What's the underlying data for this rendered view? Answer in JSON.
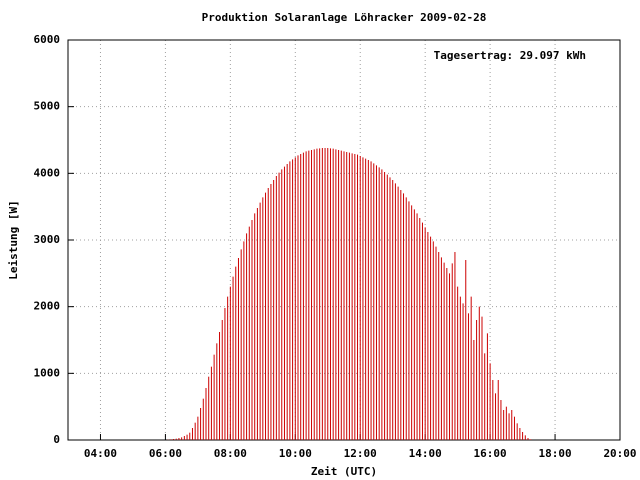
{
  "chart_data": {
    "type": "impulse",
    "title": "Produktion Solaranlage Löhracker 2009-02-28",
    "annotation": "Tagesertrag: 29.097 kWh",
    "x_label": "Zeit (UTC)",
    "y_label": "Leistung [W]",
    "color": "#cc0000",
    "grid": true,
    "xlim": [
      180,
      1200
    ],
    "ylim": [
      0,
      6000
    ],
    "xticks": [
      {
        "value": 240,
        "label": "04:00"
      },
      {
        "value": 360,
        "label": "06:00"
      },
      {
        "value": 480,
        "label": "08:00"
      },
      {
        "value": 600,
        "label": "10:00"
      },
      {
        "value": 720,
        "label": "12:00"
      },
      {
        "value": 840,
        "label": "14:00"
      },
      {
        "value": 960,
        "label": "16:00"
      },
      {
        "value": 1080,
        "label": "18:00"
      },
      {
        "value": 1200,
        "label": "20:00"
      }
    ],
    "yticks": [
      0,
      1000,
      2000,
      3000,
      4000,
      5000,
      6000
    ],
    "x": [
      360,
      365,
      370,
      375,
      380,
      385,
      390,
      395,
      400,
      405,
      410,
      415,
      420,
      425,
      430,
      435,
      440,
      445,
      450,
      455,
      460,
      465,
      470,
      475,
      480,
      485,
      490,
      495,
      500,
      505,
      510,
      515,
      520,
      525,
      530,
      535,
      540,
      545,
      550,
      555,
      560,
      565,
      570,
      575,
      580,
      585,
      590,
      595,
      600,
      605,
      610,
      615,
      620,
      625,
      630,
      635,
      640,
      645,
      650,
      655,
      660,
      665,
      670,
      675,
      680,
      685,
      690,
      695,
      700,
      705,
      710,
      715,
      720,
      725,
      730,
      735,
      740,
      745,
      750,
      755,
      760,
      765,
      770,
      775,
      780,
      785,
      790,
      795,
      800,
      805,
      810,
      815,
      820,
      825,
      830,
      835,
      840,
      845,
      850,
      855,
      860,
      865,
      870,
      875,
      880,
      885,
      890,
      895,
      900,
      905,
      910,
      915,
      920,
      925,
      930,
      935,
      940,
      945,
      950,
      955,
      960,
      965,
      970,
      975,
      980,
      985,
      990,
      995,
      1000,
      1005,
      1010,
      1015,
      1020,
      1025,
      1030,
      1035
    ],
    "values": [
      0,
      5,
      10,
      15,
      20,
      30,
      40,
      60,
      80,
      110,
      180,
      260,
      350,
      480,
      620,
      780,
      950,
      1100,
      1280,
      1450,
      1620,
      1800,
      1980,
      2150,
      2300,
      2450,
      2600,
      2730,
      2860,
      2980,
      3100,
      3200,
      3300,
      3400,
      3480,
      3560,
      3640,
      3710,
      3780,
      3840,
      3900,
      3960,
      4010,
      4060,
      4100,
      4140,
      4180,
      4210,
      4240,
      4270,
      4290,
      4310,
      4330,
      4340,
      4350,
      4360,
      4370,
      4375,
      4380,
      4380,
      4380,
      4375,
      4370,
      4360,
      4350,
      4340,
      4330,
      4320,
      4310,
      4300,
      4290,
      4280,
      4260,
      4240,
      4220,
      4200,
      4180,
      4150,
      4120,
      4090,
      4060,
      4020,
      3980,
      3940,
      3900,
      3850,
      3800,
      3750,
      3700,
      3640,
      3580,
      3520,
      3460,
      3400,
      3330,
      3260,
      3190,
      3120,
      3050,
      2980,
      2900,
      2820,
      2740,
      2660,
      2580,
      2500,
      2650,
      2820,
      2300,
      2150,
      2050,
      2700,
      1900,
      2150,
      1500,
      1800,
      2000,
      1850,
      1300,
      1600,
      1150,
      900,
      700,
      900,
      600,
      450,
      500,
      400,
      450,
      350,
      250,
      180,
      120,
      70,
      30,
      10
    ]
  }
}
